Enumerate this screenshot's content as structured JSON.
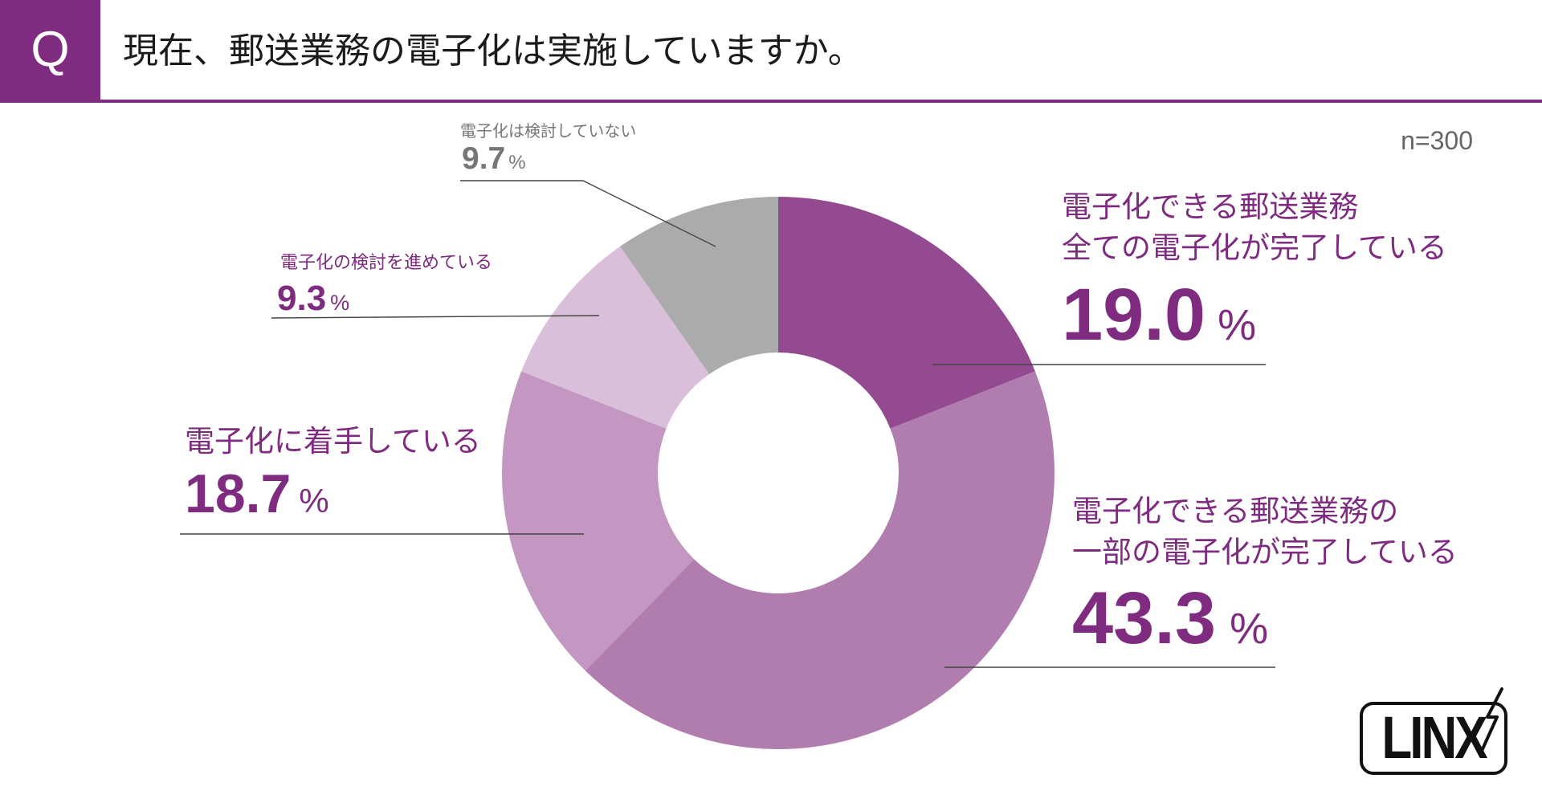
{
  "header": {
    "q_label": "Q"
  },
  "logo": {
    "text": "LINX"
  },
  "colors": {
    "brand": "#7E2B80",
    "leader_line": "#444444",
    "annotation": "#666666"
  },
  "chart_data": {
    "type": "pie",
    "variant": "donut",
    "title": "現在、郵送業務の電子化は実施していますか。",
    "annotation": "n=300",
    "unit": "%",
    "start": "top",
    "direction": "clockwise",
    "slices": [
      {
        "label_lines": [
          "電子化できる郵送業務",
          "全ての電子化が完了している"
        ],
        "value": 19.0,
        "color": "#944A90",
        "label_color": "#7E2B80"
      },
      {
        "label_lines": [
          "電子化できる郵送業務の",
          "一部の電子化が完了している"
        ],
        "value": 43.3,
        "color": "#B17DAE",
        "label_color": "#7E2B80"
      },
      {
        "label_lines": [
          "電子化に着手している"
        ],
        "value": 18.7,
        "color": "#C397C2",
        "label_color": "#7E2B80"
      },
      {
        "label_lines": [
          "電子化の検討を進めている"
        ],
        "value": 9.3,
        "color": "#DABFDA",
        "label_color": "#7E2B80"
      },
      {
        "label_lines": [
          "電子化は検討していない"
        ],
        "value": 9.7,
        "color": "#ABABAB",
        "label_color": "#777777"
      }
    ]
  }
}
